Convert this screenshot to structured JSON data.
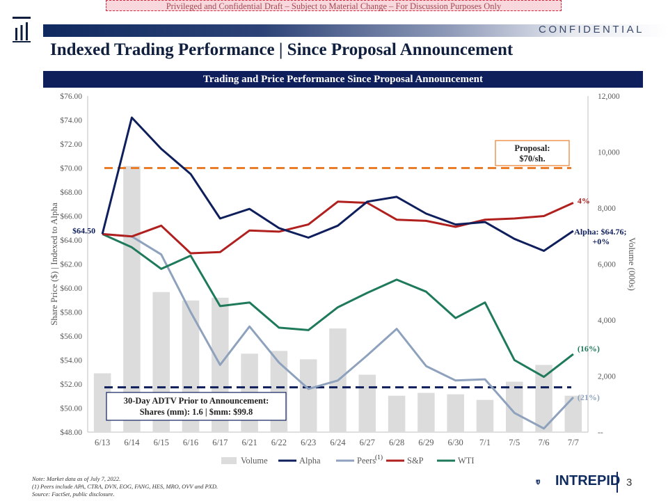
{
  "banner": "Privileged and Confidential Draft – Subject to Material Change – For Discussion Purposes Only",
  "confidential_label": "CONFIDENTIAL",
  "page_title": "Indexed Trading Performance | Since Proposal Announcement",
  "section_header": "Trading and Price Performance Since Proposal Announcement",
  "colors": {
    "navy": "#0f1f5c",
    "volume": "#dcdcdc",
    "alpha": "#0f1f5c",
    "peers": "#8ea2bd",
    "sp": "#b0201f",
    "wti": "#1f7a5a",
    "proposal": "#e97d2a",
    "adtv": "#0f1f5c"
  },
  "chart_data": {
    "type": "line",
    "categories": [
      "6/13",
      "6/14",
      "6/15",
      "6/16",
      "6/17",
      "6/21",
      "6/22",
      "6/23",
      "6/24",
      "6/27",
      "6/28",
      "6/29",
      "6/30",
      "7/1",
      "7/5",
      "7/6",
      "7/7"
    ],
    "y_left": {
      "label": "Share Price ($) | Indexed to Alpha",
      "range": [
        48,
        76
      ],
      "ticks": [
        "$48.00",
        "$50.00",
        "$52.00",
        "$54.00",
        "$56.00",
        "$58.00",
        "$60.00",
        "$62.00",
        "$64.00",
        "$66.00",
        "$68.00",
        "$70.00",
        "$72.00",
        "$74.00",
        "$76.00"
      ]
    },
    "y_right": {
      "label": "Volume (000s)",
      "range": [
        0,
        12000
      ],
      "ticks": [
        "--",
        "2,000",
        "4,000",
        "6,000",
        "8,000",
        "10,000",
        "12,000"
      ]
    },
    "volume": {
      "name": "Volume",
      "values": [
        2100,
        9500,
        5000,
        4700,
        4800,
        2800,
        2900,
        2600,
        3700,
        2050,
        1300,
        1400,
        1350,
        1150,
        1800,
        2400,
        1300
      ]
    },
    "series": [
      {
        "name": "Alpha",
        "values": [
          64.5,
          74.2,
          71.6,
          69.5,
          65.8,
          66.6,
          65.0,
          64.2,
          65.2,
          67.2,
          67.6,
          66.2,
          65.3,
          65.5,
          64.1,
          63.1,
          64.76
        ]
      },
      {
        "name": "Peers",
        "values": [
          64.5,
          64.3,
          62.8,
          58.0,
          53.6,
          56.8,
          53.8,
          51.6,
          52.3,
          54.4,
          56.6,
          53.5,
          52.3,
          52.4,
          49.6,
          48.3,
          50.9
        ]
      },
      {
        "name": "S&P",
        "values": [
          64.5,
          64.3,
          65.2,
          62.9,
          63.0,
          64.8,
          64.7,
          65.3,
          67.2,
          67.1,
          65.7,
          65.6,
          65.1,
          65.7,
          65.8,
          66.0,
          67.1
        ]
      },
      {
        "name": "WTI",
        "values": [
          64.5,
          63.4,
          61.6,
          62.7,
          58.5,
          58.8,
          56.7,
          56.5,
          58.4,
          59.6,
          60.7,
          59.7,
          57.5,
          58.8,
          54.0,
          52.6,
          54.5
        ]
      }
    ],
    "reference_lines": [
      {
        "name": "Proposal",
        "axis": "left",
        "value": 70
      },
      {
        "name": "30-Day ADTV",
        "axis": "right",
        "value": 1600
      }
    ],
    "legend": {
      "volume": "Volume",
      "alpha": "Alpha",
      "peers": "Peers",
      "peers_note": "(1)",
      "sp": "S&P",
      "wti": "WTI"
    },
    "annotations": {
      "start": "$64.50",
      "proposal_line1": "Proposal:",
      "proposal_line2": "$70/sh.",
      "sp_end": "4%",
      "alpha_end_line1": "Alpha: $64.76;",
      "alpha_end_line2": "+0%",
      "wti_end": "(16%)",
      "peers_end": "(21%)",
      "adtv_line1": "30-Day ADTV Prior to Announcement:",
      "adtv_line2": "Shares (mm): 1.6  |  $mm: $99.8"
    }
  },
  "footnotes": [
    "Note: Market data as of July 7, 2022.",
    "(1)      Peers include APA, CTRA, DVN, EOG, FANG, HES, MRO, OVV and PXD.",
    "Source: FactSet, public disclosure."
  ],
  "brand_name": "INTREPID",
  "page_number": "3"
}
